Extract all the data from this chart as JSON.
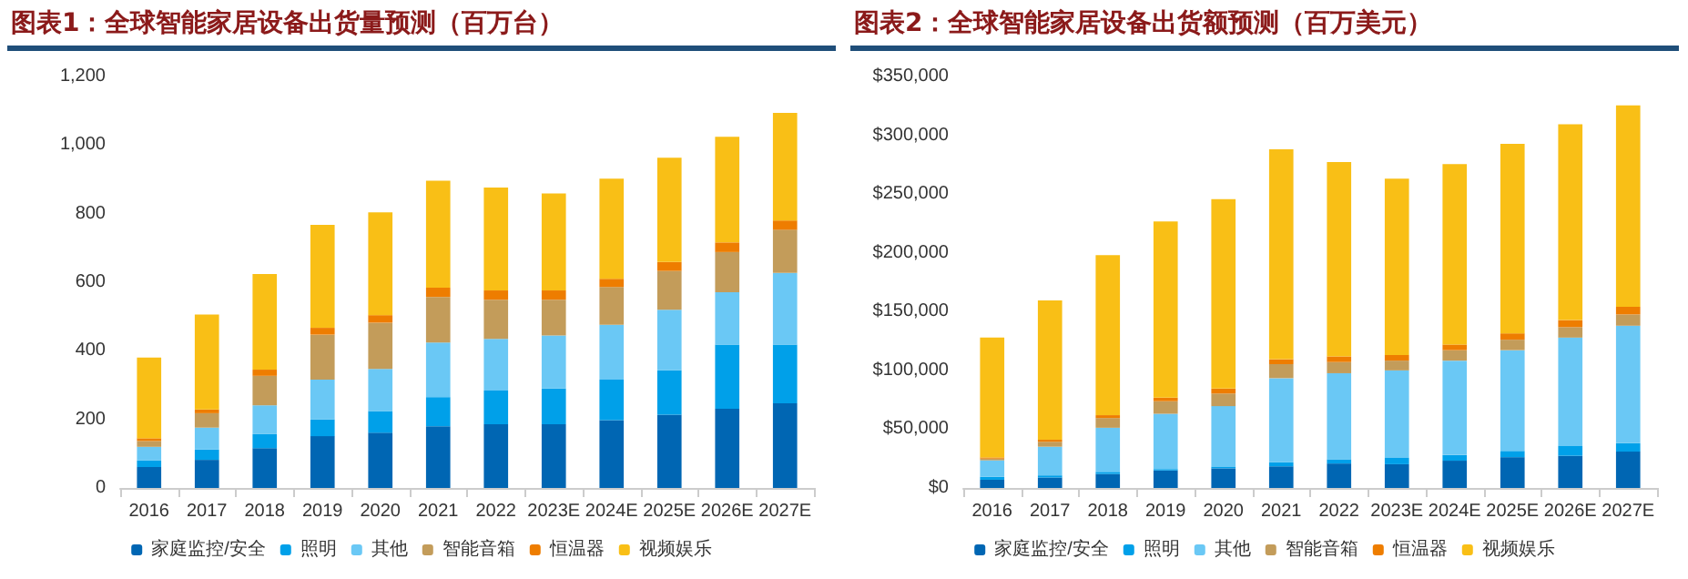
{
  "chart_data": [
    {
      "type": "bar",
      "title": "图表1：全球智能家居设备出货量预测（百万台）",
      "stacked": true,
      "legend": "bottom",
      "grid": false,
      "categories": [
        "2016",
        "2017",
        "2018",
        "2019",
        "2020",
        "2021",
        "2022",
        "2023E",
        "2024E",
        "2025E",
        "2026E",
        "2027E"
      ],
      "ylim": [
        0,
        1200
      ],
      "yticks": [
        0,
        200,
        400,
        600,
        800,
        {
          "value": 1000,
          "label": "1,000"
        },
        {
          "value": 1200,
          "label": "1,200"
        }
      ],
      "series": [
        {
          "name": "家庭监控/安全",
          "color": "#0066b3",
          "values": [
            61,
            82,
            116,
            151,
            161,
            180,
            186,
            186,
            198,
            214,
            231,
            247
          ]
        },
        {
          "name": "照明",
          "color": "#00a0e9",
          "values": [
            19,
            30,
            41,
            49,
            63,
            85,
            98,
            104,
            118,
            129,
            187,
            171
          ]
        },
        {
          "name": "其他",
          "color": "#6ac8f5",
          "values": [
            40,
            64,
            84,
            116,
            123,
            159,
            151,
            155,
            160,
            177,
            153,
            209
          ]
        },
        {
          "name": "智能音箱",
          "color": "#c39c5a",
          "values": [
            17,
            42,
            86,
            131,
            135,
            133,
            114,
            104,
            110,
            113,
            117,
            126
          ]
        },
        {
          "name": "恒温器",
          "color": "#ee7d00",
          "values": [
            8,
            11,
            18,
            20,
            22,
            27,
            27,
            27,
            24,
            26,
            28,
            27
          ]
        },
        {
          "name": "视频娱乐",
          "color": "#f9bf16",
          "values": [
            235,
            277,
            279,
            300,
            300,
            312,
            300,
            283,
            292,
            304,
            308,
            314
          ]
        }
      ]
    },
    {
      "type": "bar",
      "title": "图表2：全球智能家居设备出货额预测（百万美元）",
      "stacked": true,
      "legend": "bottom",
      "grid": false,
      "categories": [
        "2016",
        "2017",
        "2018",
        "2019",
        "2020",
        "2021",
        "2022",
        "2023E",
        "2024E",
        "2025E",
        "2026E",
        "2027E"
      ],
      "ylim": [
        0,
        350000
      ],
      "yticks": [
        {
          "value": 0,
          "label": "$0"
        },
        {
          "value": 50000,
          "label": "$50,000"
        },
        {
          "value": 100000,
          "label": "$100,000"
        },
        {
          "value": 150000,
          "label": "$150,000"
        },
        {
          "value": 200000,
          "label": "$200,000"
        },
        {
          "value": 250000,
          "label": "$250,000"
        },
        {
          "value": 300000,
          "label": "$300,000"
        },
        {
          "value": 350000,
          "label": "$350,000"
        }
      ],
      "series": [
        {
          "name": "家庭监控/安全",
          "color": "#0066b3",
          "values": [
            7000,
            8900,
            11900,
            14900,
            16700,
            18400,
            20800,
            20200,
            23200,
            26200,
            27400,
            30900
          ]
        },
        {
          "name": "照明",
          "color": "#00a0e9",
          "values": [
            2500,
            1800,
            1800,
            1200,
            1200,
            3600,
            3600,
            5400,
            4800,
            5300,
            8300,
            7200
          ]
        },
        {
          "name": "其他",
          "color": "#6ac8f5",
          "values": [
            14000,
            24400,
            37500,
            47000,
            51700,
            71400,
            73200,
            74400,
            80300,
            85700,
            92200,
            99900
          ]
        },
        {
          "name": "智能音箱",
          "color": "#c39c5a",
          "values": [
            1500,
            4200,
            8300,
            10700,
            10700,
            11900,
            9500,
            8300,
            8900,
            8900,
            8900,
            9600
          ]
        },
        {
          "name": "恒温器",
          "color": "#ee7d00",
          "values": [
            1000,
            1700,
            2400,
            3000,
            4200,
            4200,
            4800,
            4800,
            4800,
            5400,
            6000,
            6500
          ]
        },
        {
          "name": "视频娱乐",
          "color": "#f9bf16",
          "values": [
            102000,
            118500,
            136200,
            149900,
            161200,
            178500,
            165400,
            149900,
            153500,
            161200,
            166600,
            171400
          ]
        }
      ]
    }
  ]
}
